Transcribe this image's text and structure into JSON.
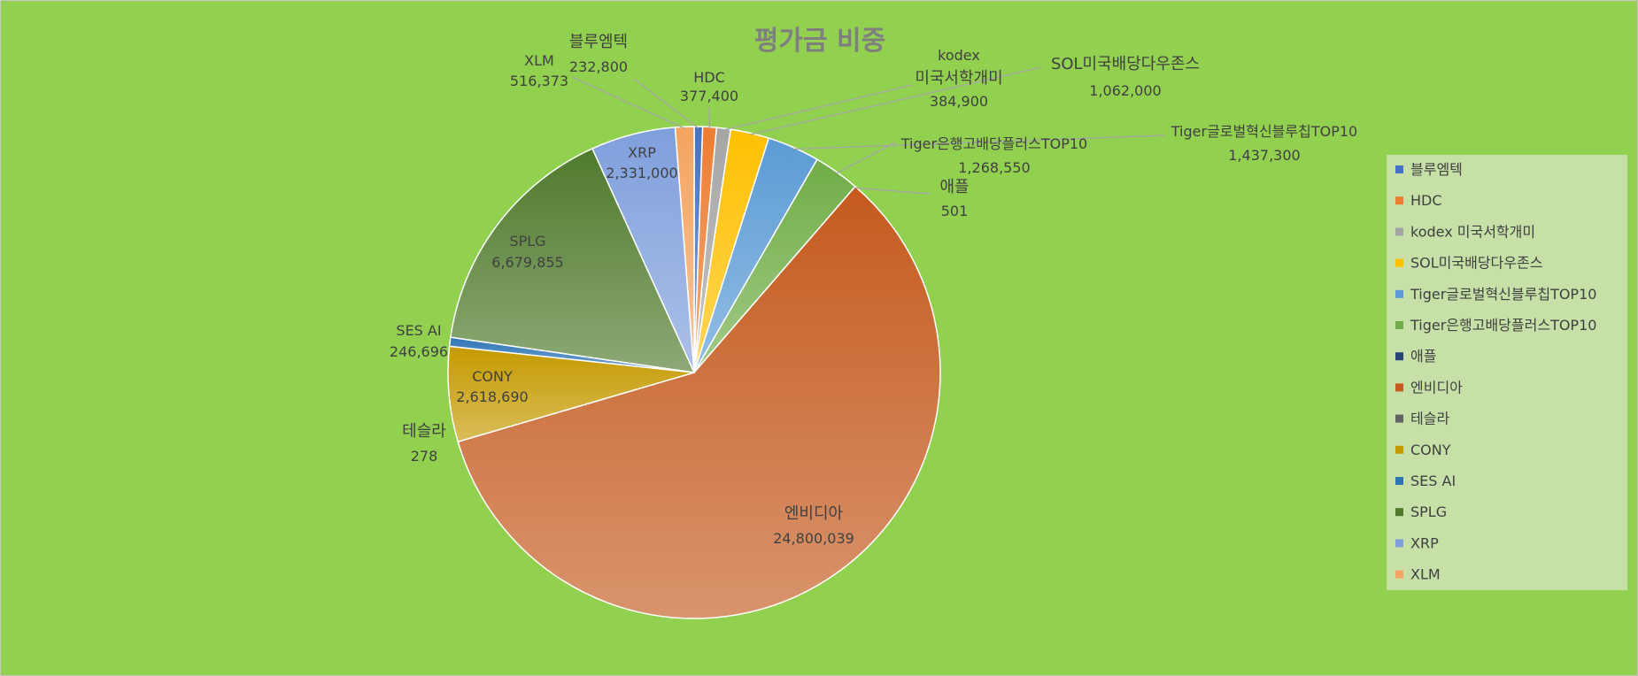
{
  "chart_data": {
    "type": "pie",
    "title": "평가금 비중",
    "legend_position": "right",
    "slices": [
      {
        "name": "블루엠텍",
        "value": 232800,
        "label": "232,800",
        "color": "#4472c4"
      },
      {
        "name": "HDC",
        "value": 377400,
        "label": "377,400",
        "color": "#ed7d31"
      },
      {
        "name": "kodex 미국서학개미",
        "value": 384900,
        "label": "384,900",
        "color": "#a5a5a5"
      },
      {
        "name": "SOL미국배당다우존스",
        "value": 1062000,
        "label": "1,062,000",
        "color": "#ffc000"
      },
      {
        "name": "Tiger글로벌혁신블루칩TOP10",
        "value": 1437300,
        "label": "1,437,300",
        "color": "#5b9bd5"
      },
      {
        "name": "Tiger은행고배당플러스TOP10",
        "value": 1268550,
        "label": "1,268,550",
        "color": "#70ad47"
      },
      {
        "name": "애플",
        "value": 501,
        "label": "501",
        "color": "#264478"
      },
      {
        "name": "엔비디아",
        "value": 24800039,
        "label": "24,800,039",
        "color": "#c55a1e"
      },
      {
        "name": "테슬라",
        "value": 278,
        "label": "278",
        "color": "#636363"
      },
      {
        "name": "CONY",
        "value": 2618690,
        "label": "2,618,690",
        "color": "#c59a00"
      },
      {
        "name": "SES AI",
        "value": 246696,
        "label": "246,696",
        "color": "#2e75b6"
      },
      {
        "name": "SPLG",
        "value": 6679855,
        "label": "6,679,855",
        "color": "#4f7a2c"
      },
      {
        "name": "XRP",
        "value": 2331000,
        "label": "2,331,000",
        "color": "#7f9fdc"
      },
      {
        "name": "XLM",
        "value": 516373,
        "label": "516,373",
        "color": "#f4a460"
      }
    ],
    "legend_labels": [
      "블루엠텍",
      "HDC",
      "kodex 미국서학개미",
      "SOL미국배당다우존스",
      "Tiger글로벌혁신블루칩TOP10",
      "Tiger은행고배당플러스TOP10",
      "애플",
      "엔비디아",
      "테슬라",
      "CONY",
      "SES AI",
      "SPLG",
      "XRP",
      "XLM"
    ]
  },
  "colors": {
    "background": "#92d050",
    "legend_background": "#c6e0a8",
    "title_color": "#7f7f7f",
    "label_color": "#404040"
  }
}
